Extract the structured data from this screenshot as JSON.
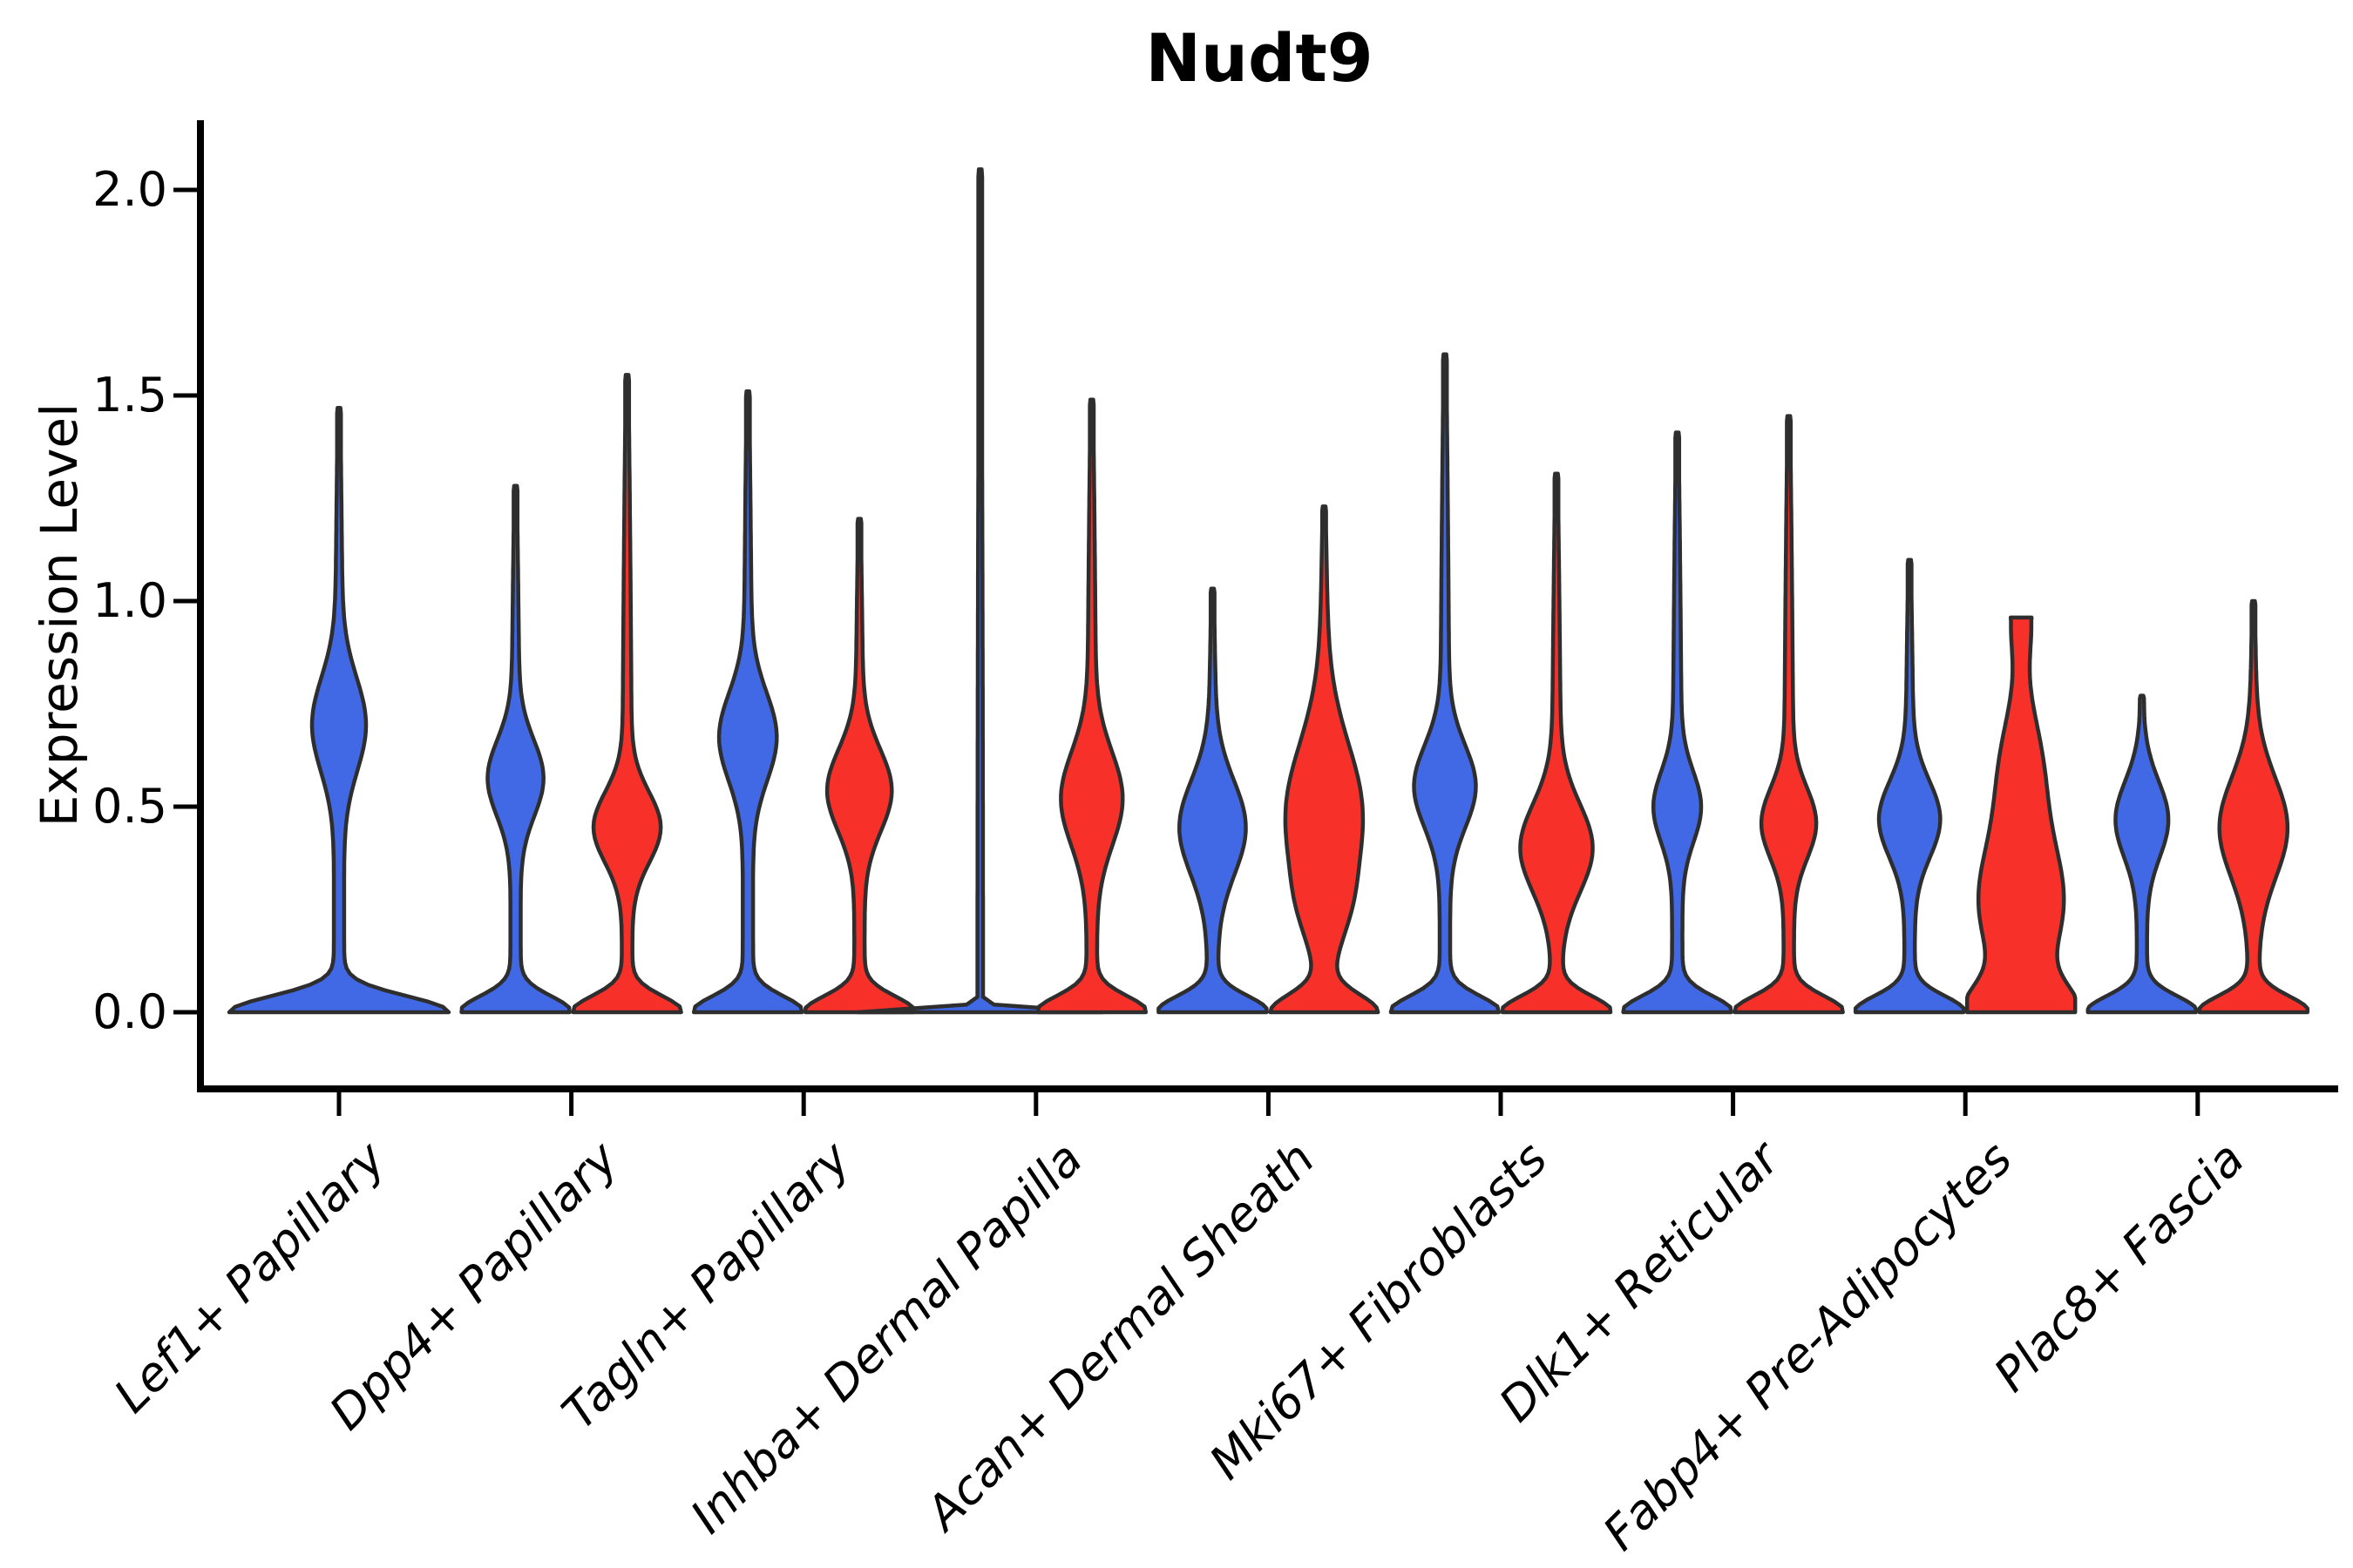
{
  "title": "Nudt9",
  "axes": {
    "ylabel": "Expression Level",
    "ytick_labels": [
      "0.0",
      "0.5",
      "1.0",
      "1.5",
      "2.0"
    ],
    "ytick_values": [
      0.0,
      0.5,
      1.0,
      1.5,
      2.0
    ]
  },
  "chart_data": {
    "type": "violin",
    "title": "Nudt9",
    "xlabel": "",
    "ylabel": "Expression Level",
    "ylim": [
      -0.07,
      2.12
    ],
    "yticks": [
      0.0,
      0.5,
      1.0,
      1.5,
      2.0
    ],
    "grid": false,
    "legend": "none",
    "categories": [
      "Lef1+ Papillary",
      "Dpp4+ Papillary",
      "Tagln+ Papillary",
      "Inhba+ Dermal Papilla",
      "Acan+ Dermal Sheath",
      "Mki67+ Fibroblasts",
      "Dlk1+ Reticular",
      "Fabp4+ Pre-Adipocytes",
      "Plac8+ Fascia"
    ],
    "series": [
      {
        "id": "blue",
        "color": "#4169E6"
      },
      {
        "id": "red",
        "color": "#F8302A"
      }
    ],
    "outline_color": "#2E2E2E",
    "violins": [
      {
        "category_index": 0,
        "series": "blue",
        "offset": 0,
        "max_expression": 1.47,
        "width": 126,
        "stem": 6,
        "base": {
          "w": 120,
          "decay": 0.055
        },
        "bulges": [
          {
            "c": 0.7,
            "s": 0.16,
            "w": 26
          }
        ],
        "flat_top": null
      },
      {
        "category_index": 1,
        "series": "blue",
        "offset": -1,
        "max_expression": 1.28,
        "width": 62,
        "stem": 6,
        "base": {
          "w": 58,
          "decay": 0.055
        },
        "bulges": [
          {
            "c": 0.57,
            "s": 0.13,
            "w": 27
          }
        ],
        "flat_top": null
      },
      {
        "category_index": 1,
        "series": "red",
        "offset": 1,
        "max_expression": 1.55,
        "width": 62,
        "stem": 6,
        "base": {
          "w": 58,
          "decay": 0.055
        },
        "bulges": [
          {
            "c": 0.45,
            "s": 0.12,
            "w": 33
          }
        ],
        "flat_top": null
      },
      {
        "category_index": 2,
        "series": "blue",
        "offset": -1,
        "max_expression": 1.51,
        "width": 62,
        "stem": 6,
        "base": {
          "w": 58,
          "decay": 0.055
        },
        "bulges": [
          {
            "c": 0.67,
            "s": 0.15,
            "w": 28
          }
        ],
        "flat_top": null
      },
      {
        "category_index": 2,
        "series": "red",
        "offset": 1,
        "max_expression": 1.2,
        "width": 62,
        "stem": 6,
        "base": {
          "w": 58,
          "decay": 0.055
        },
        "bulges": [
          {
            "c": 0.54,
            "s": 0.14,
            "w": 32
          }
        ],
        "flat_top": null
      },
      {
        "category_index": 3,
        "series": "blue",
        "offset": -1,
        "max_expression": 2.05,
        "width": 140,
        "stem": 3.2,
        "base": {
          "w": 138,
          "decay": 0.012
        },
        "bulges": [],
        "flat_top": null
      },
      {
        "category_index": 3,
        "series": "red",
        "offset": 1,
        "max_expression": 1.49,
        "width": 62,
        "stem": 6,
        "base": {
          "w": 58,
          "decay": 0.055
        },
        "bulges": [
          {
            "c": 0.52,
            "s": 0.16,
            "w": 30
          }
        ],
        "flat_top": null
      },
      {
        "category_index": 4,
        "series": "blue",
        "offset": -1,
        "max_expression": 1.03,
        "width": 62,
        "stem": 6,
        "base": {
          "w": 58,
          "decay": 0.055
        },
        "bulges": [
          {
            "c": 0.45,
            "s": 0.16,
            "w": 33
          }
        ],
        "flat_top": null
      },
      {
        "category_index": 4,
        "series": "red",
        "offset": 1,
        "max_expression": 1.23,
        "width": 62,
        "stem": 7,
        "base": {
          "w": 54,
          "decay": 0.06
        },
        "bulges": [
          {
            "c": 0.48,
            "s": 0.24,
            "w": 38
          },
          {
            "c": 0.25,
            "s": 0.12,
            "w": 10
          }
        ],
        "flat_top": null
      },
      {
        "category_index": 5,
        "series": "blue",
        "offset": -1,
        "max_expression": 1.6,
        "width": 62,
        "stem": 6,
        "base": {
          "w": 58,
          "decay": 0.055
        },
        "bulges": [
          {
            "c": 0.55,
            "s": 0.14,
            "w": 30
          }
        ],
        "flat_top": null
      },
      {
        "category_index": 5,
        "series": "red",
        "offset": 1,
        "max_expression": 1.31,
        "width": 62,
        "stem": 6,
        "base": {
          "w": 58,
          "decay": 0.055
        },
        "bulges": [
          {
            "c": 0.4,
            "s": 0.15,
            "w": 36
          }
        ],
        "flat_top": null
      },
      {
        "category_index": 6,
        "series": "blue",
        "offset": -1,
        "max_expression": 1.41,
        "width": 62,
        "stem": 6,
        "base": {
          "w": 58,
          "decay": 0.055
        },
        "bulges": [
          {
            "c": 0.5,
            "s": 0.12,
            "w": 22
          }
        ],
        "flat_top": null
      },
      {
        "category_index": 6,
        "series": "red",
        "offset": 1,
        "max_expression": 1.45,
        "width": 62,
        "stem": 6,
        "base": {
          "w": 58,
          "decay": 0.055
        },
        "bulges": [
          {
            "c": 0.46,
            "s": 0.12,
            "w": 26
          }
        ],
        "flat_top": null
      },
      {
        "category_index": 7,
        "series": "blue",
        "offset": -1,
        "max_expression": 1.1,
        "width": 62,
        "stem": 6,
        "base": {
          "w": 58,
          "decay": 0.055
        },
        "bulges": [
          {
            "c": 0.47,
            "s": 0.13,
            "w": 30
          }
        ],
        "flat_top": null
      },
      {
        "category_index": 7,
        "series": "red",
        "offset": 1,
        "max_expression": 0.96,
        "width": 62,
        "stem": 9,
        "base": {
          "w": 48,
          "decay": 0.09
        },
        "bulges": [
          {
            "c": 0.27,
            "s": 0.22,
            "w": 40
          },
          {
            "c": 0.6,
            "s": 0.18,
            "w": 16
          },
          {
            "c": 0.96,
            "s": 0.12,
            "w": 9
          }
        ],
        "flat_top": {
          "top_halfwidth": 12
        }
      },
      {
        "category_index": 8,
        "series": "blue",
        "offset": -1,
        "max_expression": 0.77,
        "width": 62,
        "stem": 6,
        "base": {
          "w": 58,
          "decay": 0.055
        },
        "bulges": [
          {
            "c": 0.47,
            "s": 0.13,
            "w": 26
          }
        ],
        "flat_top": null
      },
      {
        "category_index": 8,
        "series": "red",
        "offset": 1,
        "max_expression": 1.0,
        "width": 62,
        "stem": 6,
        "base": {
          "w": 58,
          "decay": 0.055
        },
        "bulges": [
          {
            "c": 0.45,
            "s": 0.17,
            "w": 34
          }
        ],
        "flat_top": null
      }
    ]
  }
}
